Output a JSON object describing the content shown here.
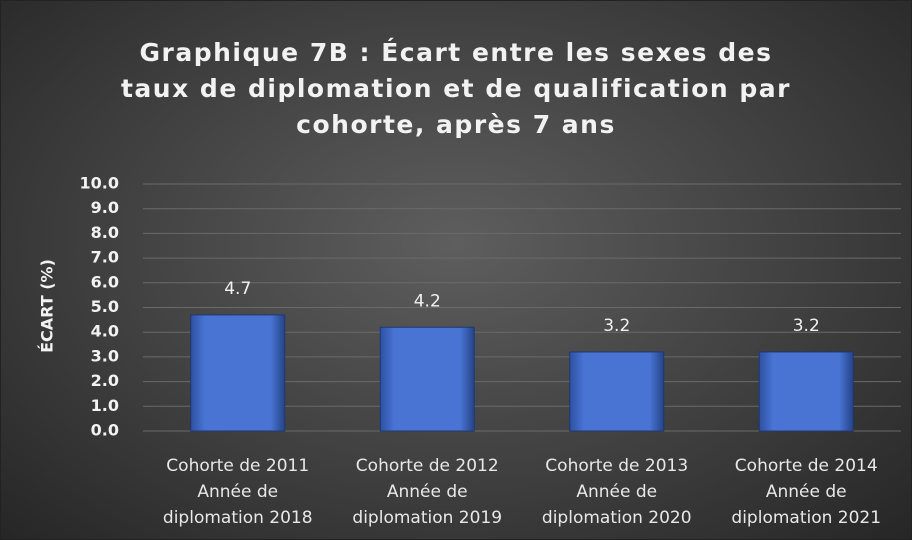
{
  "chart_data": {
    "type": "bar",
    "title": "Graphique 7B : Écart entre les sexes des taux de diplomation et de qualification par cohorte, après 7 ans",
    "y_label": "ÉCART (%)",
    "categories": [
      [
        "Cohorte de 2011",
        "Année de",
        "diplomation 2018"
      ],
      [
        "Cohorte de 2012",
        "Année de",
        "diplomation 2019"
      ],
      [
        "Cohorte de 2013",
        "Année de",
        "diplomation 2020"
      ],
      [
        "Cohorte de 2014",
        "Année de",
        "diplomation 2021"
      ]
    ],
    "values": [
      4.7,
      4.2,
      3.2,
      3.2
    ],
    "color": "#4169c8",
    "ylim": [
      0,
      10
    ],
    "yticks": [
      {
        "value": 0,
        "label": "0.0"
      },
      {
        "value": 1,
        "label": "1.0"
      },
      {
        "value": 2,
        "label": "2.0"
      },
      {
        "value": 3,
        "label": "3.0"
      },
      {
        "value": 4,
        "label": "4.0"
      },
      {
        "value": 5,
        "label": "5.0"
      },
      {
        "value": 6,
        "label": "6.0"
      },
      {
        "value": 7,
        "label": "7.0"
      },
      {
        "value": 8,
        "label": "8.0"
      },
      {
        "value": 9,
        "label": "9.0"
      },
      {
        "value": 10,
        "label": "10.0"
      }
    ],
    "grid": true
  }
}
